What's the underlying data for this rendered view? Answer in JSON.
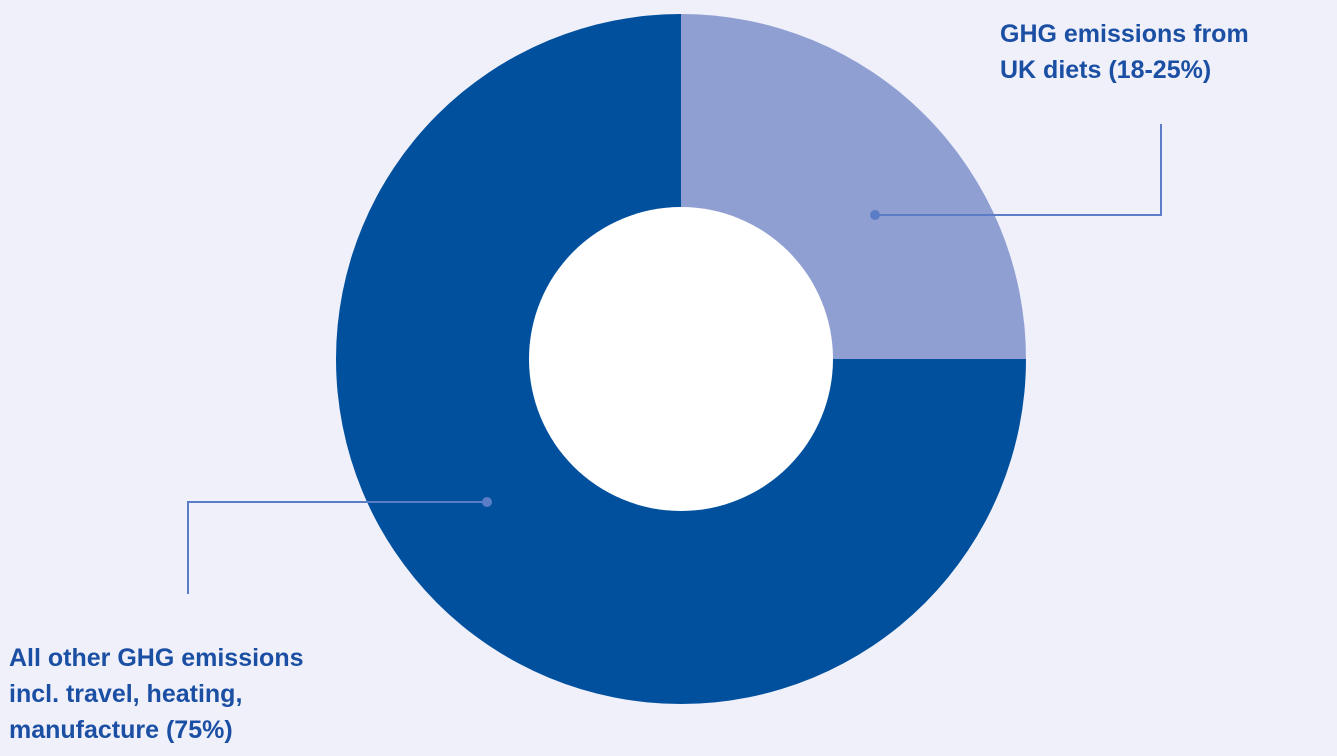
{
  "chart_data": {
    "type": "pie",
    "donut": true,
    "slices": [
      {
        "name": "GHG emissions from UK diets (18-25%)",
        "value": 25,
        "color": "#8f9fd2",
        "label_lines": [
          "GHG emissions from",
          "UK diets (18-25%)"
        ]
      },
      {
        "name": "All other GHG emissions incl. travel, heating, manufacture (75%)",
        "value": 75,
        "color": "#00509e",
        "label_lines": [
          "All other GHG emissions",
          "incl. travel, heating,",
          "manufacture (75%)"
        ]
      }
    ],
    "center_color": "#ffffff",
    "leader_color": "#5b7cc6"
  }
}
